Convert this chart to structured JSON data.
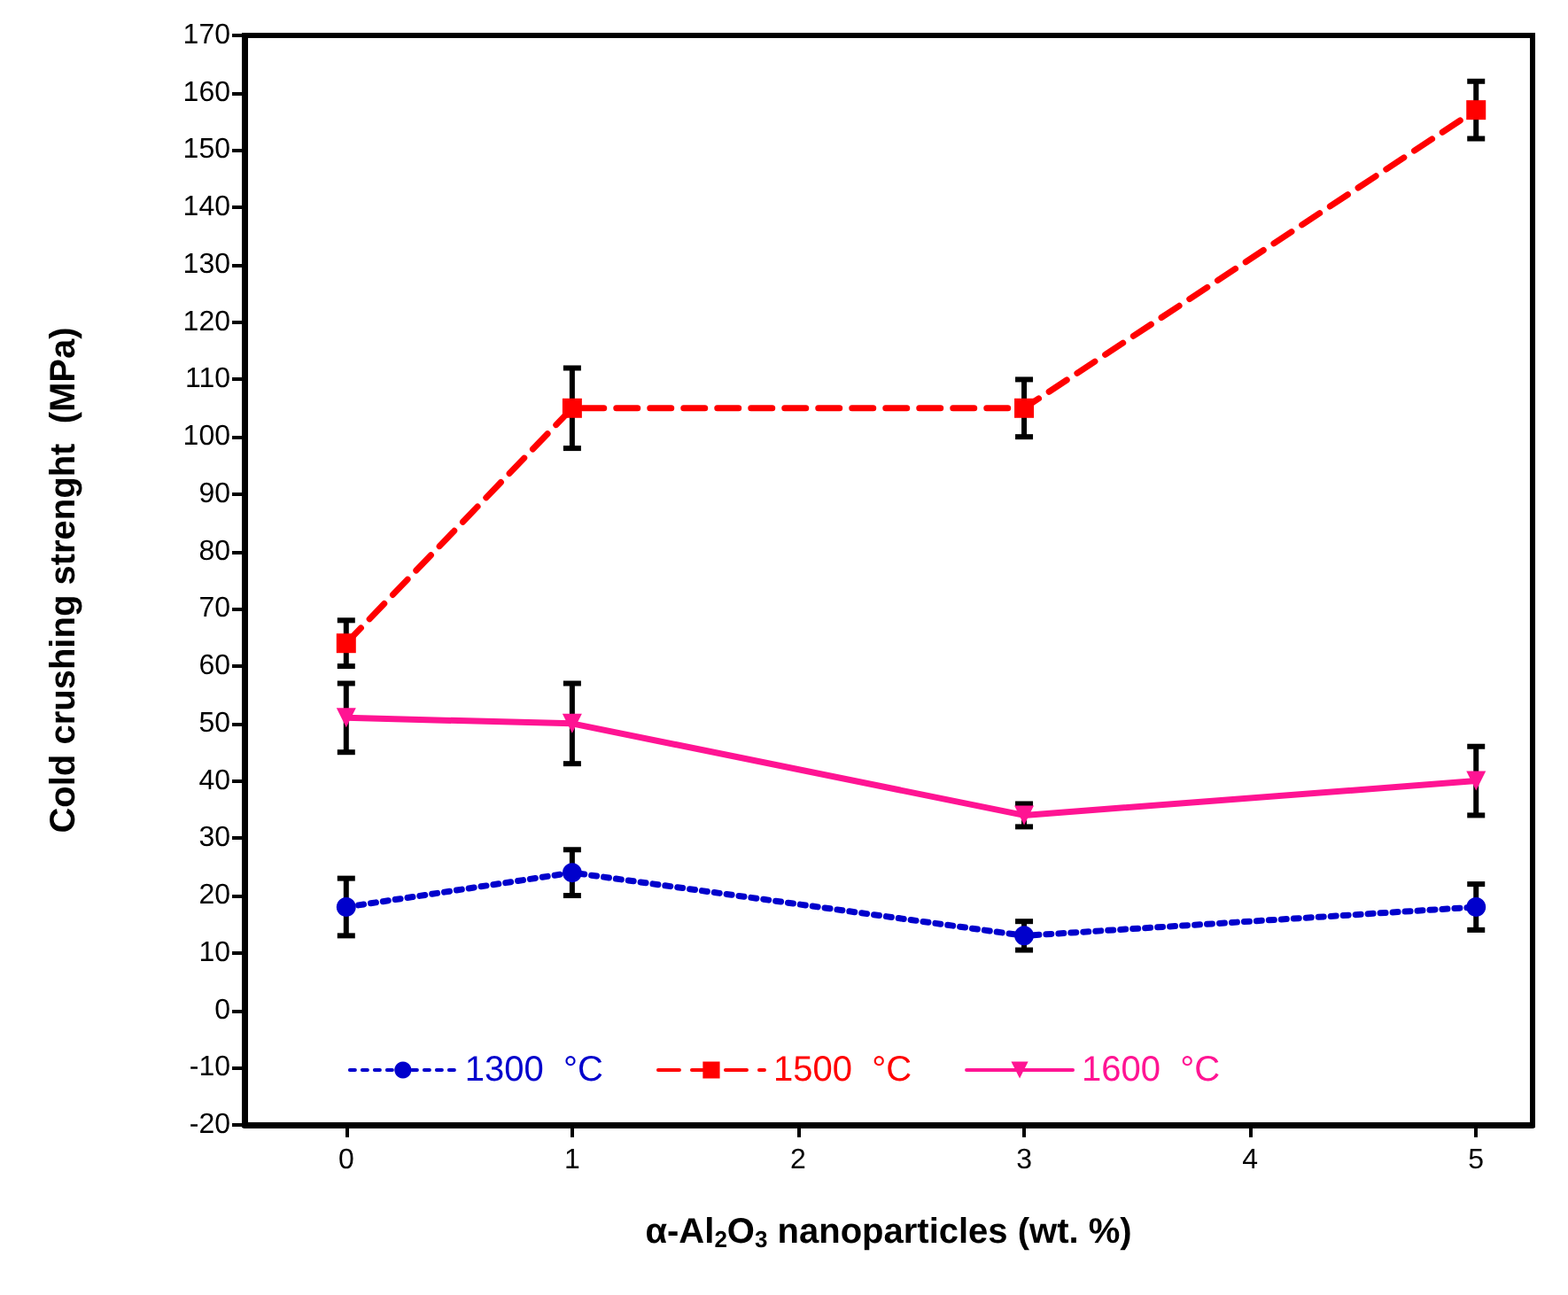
{
  "chart_data": {
    "type": "line",
    "xlabel": "α-Al$_{2}$O$_{3}$ nanoparticles (wt. %)",
    "ylabel": "Cold crushing strenght  (MPa)",
    "x": [
      0,
      1,
      3,
      5
    ],
    "xlim": [
      -0.45,
      5.25
    ],
    "xticks": [
      0,
      1,
      2,
      3,
      4,
      5
    ],
    "ylim": [
      -20,
      170
    ],
    "yticks": [
      -20,
      -10,
      0,
      10,
      20,
      30,
      40,
      50,
      60,
      70,
      80,
      90,
      100,
      110,
      120,
      130,
      140,
      150,
      160,
      170
    ],
    "grid": false,
    "legend": "bottom",
    "series": [
      {
        "name": "1300  °C",
        "color": "#0000cc",
        "marker": "circle",
        "line_style": "dotted",
        "values": [
          18,
          24,
          13,
          18
        ],
        "errors": [
          [
            13,
            23
          ],
          [
            20,
            28
          ],
          [
            10.5,
            15.5
          ],
          [
            14,
            22
          ]
        ]
      },
      {
        "name": "1500  °C",
        "color": "#ff0000",
        "marker": "square",
        "line_style": "dashed",
        "values": [
          64,
          105,
          105,
          157
        ],
        "errors": [
          [
            60,
            68
          ],
          [
            98,
            112
          ],
          [
            100,
            110
          ],
          [
            152,
            162
          ]
        ]
      },
      {
        "name": "1600  °C",
        "color": "#ff1493",
        "marker": "triangle",
        "line_style": "solid",
        "values": [
          51,
          50,
          34,
          40
        ],
        "errors": [
          [
            45,
            57
          ],
          [
            43,
            57
          ],
          [
            32,
            36
          ],
          [
            34,
            46
          ]
        ]
      }
    ]
  }
}
